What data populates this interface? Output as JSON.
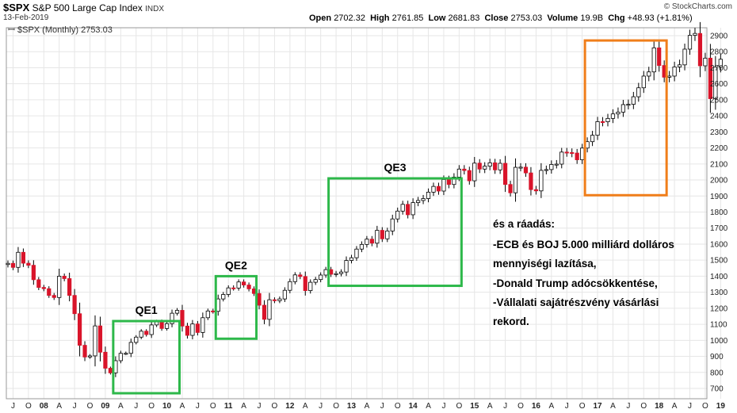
{
  "header": {
    "symbol": "$SPX",
    "name": "S&P 500 Large Cap Index",
    "exchange": "INDX",
    "date": "13-Feb-2019",
    "credit": "© StockCharts.com",
    "open_label": "Open",
    "open": "2702.32",
    "high_label": "High",
    "high": "2761.85",
    "low_label": "Low",
    "low": "2681.83",
    "close_label": "Close",
    "close": "2753.03",
    "volume_label": "Volume",
    "volume": "19.9B",
    "chg_label": "Chg",
    "chg": "+48.93 (+1.81%)",
    "legend": "$SPX (Monthly) 2753.03"
  },
  "colors": {
    "up": "#ffffff",
    "down": "#d9142a",
    "wick": "#000000",
    "qe_box": "#2db84a",
    "trump_box": "#f07e1a",
    "grid": "#e6e6e6"
  },
  "annotations": {
    "qe1": "QE1",
    "qe2": "QE2",
    "qe3": "QE3",
    "note_lines": [
      "és a ráadás:",
      "-ECB és BOJ 5.000 milliárd dolláros",
      "mennyiségi lazítása,",
      "-Donald Trump adócsökkentése,",
      "-Vállalati sajátrészvény vásárlási",
      "rekord."
    ]
  },
  "chart_data": {
    "type": "candlestick",
    "y_ticks": [
      700,
      800,
      900,
      1000,
      1100,
      1200,
      1300,
      1400,
      1500,
      1600,
      1700,
      1800,
      1900,
      2000,
      2100,
      2200,
      2300,
      2400,
      2500,
      2600,
      2700,
      2800,
      2900
    ],
    "x_tick_labels": [
      "J",
      "O",
      "08",
      "A",
      "J",
      "O",
      "09",
      "A",
      "J",
      "O",
      "10",
      "A",
      "J",
      "O",
      "11",
      "A",
      "J",
      "O",
      "12",
      "A",
      "J",
      "O",
      "13",
      "A",
      "J",
      "O",
      "14",
      "A",
      "J",
      "O",
      "15",
      "A",
      "J",
      "O",
      "16",
      "A",
      "J",
      "O",
      "17",
      "A",
      "J",
      "O",
      "18",
      "A",
      "J",
      "O",
      "19"
    ],
    "ylim": [
      650,
      2950
    ],
    "grid": true,
    "boxes": [
      {
        "label": "QE1",
        "from_month": "2009-03",
        "to_month": "2010-03",
        "y_low": 670,
        "y_high": 1120
      },
      {
        "label": "QE2",
        "from_month": "2010-11",
        "to_month": "2011-06",
        "y_low": 1010,
        "y_high": 1400
      },
      {
        "label": "QE3",
        "from_month": "2012-09",
        "to_month": "2014-10",
        "y_low": 1340,
        "y_high": 2010
      },
      {
        "label": "",
        "from_month": "2016-11",
        "to_month": "2018-02",
        "y_low": 1905,
        "y_high": 2870
      }
    ],
    "monthly_closes": [
      1480,
      1455,
      1549,
      1481,
      1468,
      1378,
      1330,
      1322,
      1280,
      1267,
      1400,
      1385,
      1280,
      1166,
      969,
      896,
      903,
      1090,
      926,
      826,
      797,
      873,
      919,
      919,
      987,
      1020,
      1057,
      1036,
      1096,
      1115,
      1074,
      1104,
      1169,
      1187,
      1089,
      1031,
      1102,
      1049,
      1141,
      1183,
      1181,
      1258,
      1286,
      1327,
      1326,
      1364,
      1345,
      1321,
      1292,
      1219,
      1131,
      1253,
      1247,
      1258,
      1312,
      1366,
      1408,
      1398,
      1310,
      1362,
      1379,
      1407,
      1441,
      1412,
      1416,
      1426,
      1498,
      1515,
      1569,
      1598,
      1631,
      1606,
      1686,
      1633,
      1682,
      1757,
      1806,
      1848,
      1783,
      1859,
      1872,
      1884,
      1924,
      1960,
      1931,
      2003,
      1972,
      2018,
      2068,
      2059,
      1995,
      2105,
      2068,
      2086,
      2107,
      2063,
      2104,
      1972,
      1920,
      2079,
      2080,
      2044,
      1940,
      1932,
      2060,
      2065,
      2097,
      2099,
      2174,
      2171,
      2168,
      2126,
      2199,
      2239,
      2279,
      2364,
      2363,
      2384,
      2412,
      2423,
      2470,
      2472,
      2519,
      2575,
      2648,
      2674,
      2824,
      2714,
      2641,
      2648,
      2705,
      2718,
      2816,
      2902,
      2914,
      2712,
      2760,
      2507,
      2704,
      2753
    ]
  }
}
